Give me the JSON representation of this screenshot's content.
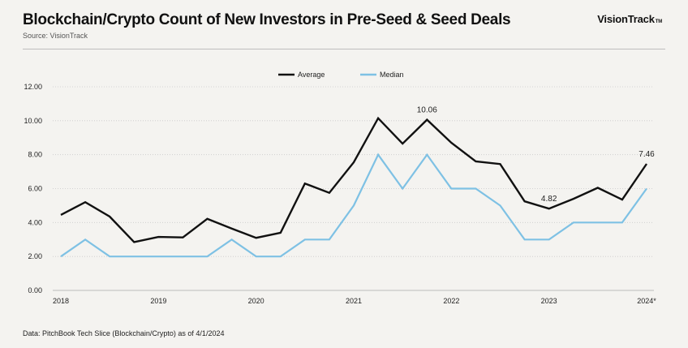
{
  "header": {
    "title": "Blockchain/Crypto Count of New Investors in Pre-Seed & Seed Deals",
    "source": "Source: VisionTrack",
    "brand": "VisionTrack",
    "brand_tm": "TM"
  },
  "footer": {
    "note": "Data: PitchBook Tech Slice (Blockchain/Crypto) as of 4/1/2024"
  },
  "chart_data": {
    "type": "line",
    "title": "Blockchain/Crypto Count of New Investors in Pre-Seed & Seed Deals",
    "xlabel": "",
    "ylabel": "",
    "ylim": [
      0,
      12
    ],
    "yticks": [
      "0.00",
      "2.00",
      "4.00",
      "6.00",
      "8.00",
      "10.00",
      "12.00"
    ],
    "ytick_values": [
      0,
      2,
      4,
      6,
      8,
      10,
      12
    ],
    "x": [
      "2018 Q1",
      "2018 Q2",
      "2018 Q3",
      "2018 Q4",
      "2019 Q1",
      "2019 Q2",
      "2019 Q3",
      "2019 Q4",
      "2020 Q1",
      "2020 Q2",
      "2020 Q3",
      "2020 Q4",
      "2021 Q1",
      "2021 Q2",
      "2021 Q3",
      "2021 Q4",
      "2022 Q1",
      "2022 Q2",
      "2022 Q3",
      "2022 Q4",
      "2023 Q1",
      "2023 Q2",
      "2023 Q3",
      "2023 Q4",
      "2024 Q1"
    ],
    "xtick_labels": [
      {
        "label": "2018",
        "index": 0
      },
      {
        "label": "2019",
        "index": 4
      },
      {
        "label": "2020",
        "index": 8
      },
      {
        "label": "2021",
        "index": 12
      },
      {
        "label": "2022",
        "index": 16
      },
      {
        "label": "2023",
        "index": 20
      },
      {
        "label": "2024*",
        "index": 24
      }
    ],
    "legend_position": "top-center",
    "series": [
      {
        "name": "Average",
        "color": "#111111",
        "values": [
          4.45,
          5.2,
          4.35,
          2.85,
          3.15,
          3.12,
          4.22,
          3.65,
          3.1,
          3.4,
          6.3,
          5.75,
          7.55,
          10.15,
          8.65,
          10.06,
          8.7,
          7.6,
          7.45,
          5.25,
          4.82,
          5.4,
          6.05,
          5.35,
          7.46
        ]
      },
      {
        "name": "Median",
        "color": "#7ec1e4",
        "values": [
          2,
          3,
          2,
          2,
          2,
          2,
          2,
          3,
          2,
          2,
          3,
          3,
          5,
          8,
          6,
          8,
          6,
          6,
          5,
          3,
          3,
          4,
          4,
          4,
          6
        ]
      }
    ],
    "annotations": [
      {
        "series": 0,
        "index": 15,
        "text": "10.06"
      },
      {
        "series": 0,
        "index": 20,
        "text": "4.82"
      },
      {
        "series": 0,
        "index": 24,
        "text": "7.46"
      }
    ]
  }
}
